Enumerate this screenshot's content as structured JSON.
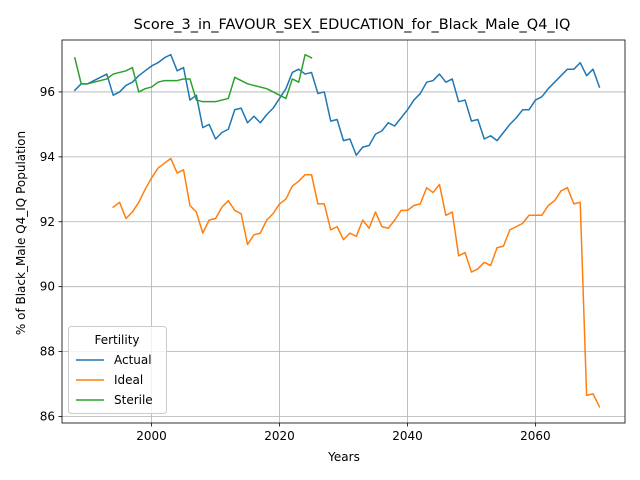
{
  "chart_data": {
    "type": "line",
    "title": "Score_3_in_FAVOUR_SEX_EDUCATION_for_Black_Male_Q4_IQ",
    "xlabel": "Years",
    "ylabel": "% of Black_Male Q4_IQ Population",
    "xlim": [
      1986,
      2074
    ],
    "ylim": [
      85.8,
      97.6
    ],
    "xticks": [
      2000,
      2020,
      2040,
      2060
    ],
    "yticks": [
      86,
      88,
      90,
      92,
      94,
      96
    ],
    "grid": true,
    "legend": {
      "title": "Fertility",
      "placement": "lower left"
    },
    "series": [
      {
        "name": "Actual",
        "color": "#1f77b4",
        "x": [
          1988,
          1989,
          1990,
          1991,
          1992,
          1993,
          1994,
          1995,
          1996,
          1997,
          1998,
          1999,
          2000,
          2001,
          2002,
          2003,
          2004,
          2005,
          2006,
          2007,
          2008,
          2009,
          2010,
          2011,
          2012,
          2013,
          2014,
          2015,
          2016,
          2017,
          2018,
          2019,
          2020,
          2021,
          2022,
          2023,
          2024,
          2025,
          2026,
          2027,
          2028,
          2029,
          2030,
          2031,
          2032,
          2033,
          2034,
          2035,
          2036,
          2037,
          2038,
          2039,
          2040,
          2041,
          2042,
          2043,
          2044,
          2045,
          2046,
          2047,
          2048,
          2049,
          2050,
          2051,
          2052,
          2053,
          2054,
          2055,
          2056,
          2057,
          2058,
          2059,
          2060,
          2061,
          2062,
          2063,
          2064,
          2065,
          2066,
          2067,
          2068,
          2069,
          2070
        ],
        "values": [
          96.05,
          96.25,
          96.25,
          96.35,
          96.45,
          96.55,
          95.9,
          96.0,
          96.2,
          96.3,
          96.5,
          96.65,
          96.8,
          96.9,
          97.05,
          97.15,
          96.65,
          96.75,
          95.75,
          95.9,
          94.9,
          95.0,
          94.55,
          94.75,
          94.85,
          95.45,
          95.5,
          95.05,
          95.25,
          95.05,
          95.3,
          95.5,
          95.8,
          96.1,
          96.6,
          96.7,
          96.55,
          96.6,
          95.95,
          96.0,
          95.1,
          95.15,
          94.5,
          94.55,
          94.05,
          94.3,
          94.35,
          94.7,
          94.8,
          95.05,
          94.95,
          95.2,
          95.45,
          95.75,
          95.95,
          96.3,
          96.35,
          96.55,
          96.3,
          96.4,
          95.7,
          95.75,
          95.1,
          95.15,
          94.55,
          94.65,
          94.5,
          94.75,
          95.0,
          95.2,
          95.45,
          95.45,
          95.75,
          95.85,
          96.1,
          96.3,
          96.5,
          96.7,
          96.7,
          96.9,
          96.5,
          96.7,
          96.15
        ]
      },
      {
        "name": "Ideal",
        "color": "#ff7f0e",
        "x": [
          1994,
          1995,
          1996,
          1997,
          1998,
          1999,
          2000,
          2001,
          2002,
          2003,
          2004,
          2005,
          2006,
          2007,
          2008,
          2009,
          2010,
          2011,
          2012,
          2013,
          2014,
          2015,
          2016,
          2017,
          2018,
          2019,
          2020,
          2021,
          2022,
          2023,
          2024,
          2025,
          2026,
          2027,
          2028,
          2029,
          2030,
          2031,
          2032,
          2033,
          2034,
          2035,
          2036,
          2037,
          2038,
          2039,
          2040,
          2041,
          2042,
          2043,
          2044,
          2045,
          2046,
          2047,
          2048,
          2049,
          2050,
          2051,
          2052,
          2053,
          2054,
          2055,
          2056,
          2057,
          2058,
          2059,
          2060,
          2061,
          2062,
          2063,
          2064,
          2065,
          2066,
          2067,
          2068,
          2069,
          2070
        ],
        "values": [
          92.45,
          92.6,
          92.1,
          92.3,
          92.6,
          93.0,
          93.35,
          93.65,
          93.8,
          93.95,
          93.5,
          93.6,
          92.5,
          92.3,
          91.65,
          92.05,
          92.1,
          92.45,
          92.65,
          92.35,
          92.25,
          91.3,
          91.6,
          91.65,
          92.05,
          92.25,
          92.55,
          92.7,
          93.1,
          93.25,
          93.45,
          93.45,
          92.55,
          92.55,
          91.75,
          91.85,
          91.45,
          91.65,
          91.55,
          92.05,
          91.8,
          92.3,
          91.85,
          91.8,
          92.05,
          92.35,
          92.35,
          92.5,
          92.55,
          93.05,
          92.9,
          93.15,
          92.2,
          92.3,
          90.95,
          91.05,
          90.45,
          90.55,
          90.75,
          90.65,
          91.2,
          91.25,
          91.75,
          91.85,
          91.95,
          92.2,
          92.2,
          92.2,
          92.5,
          92.65,
          92.95,
          93.05,
          92.55,
          92.6,
          86.65,
          86.7,
          86.3
        ]
      },
      {
        "name": "Sterile",
        "color": "#2ca02c",
        "x": [
          1988,
          1989,
          1990,
          1991,
          1992,
          1993,
          1994,
          1995,
          1996,
          1997,
          1998,
          1999,
          2000,
          2001,
          2002,
          2003,
          2004,
          2005,
          2006,
          2007,
          2008,
          2009,
          2010,
          2011,
          2012,
          2013,
          2014,
          2015,
          2016,
          2017,
          2018,
          2019,
          2020,
          2021,
          2022,
          2023,
          2024,
          2025
        ],
        "values": [
          97.05,
          96.25,
          96.25,
          96.3,
          96.35,
          96.4,
          96.55,
          96.6,
          96.65,
          96.75,
          96.0,
          96.1,
          96.15,
          96.3,
          96.35,
          96.35,
          96.35,
          96.4,
          96.4,
          95.75,
          95.7,
          95.7,
          95.7,
          95.75,
          95.8,
          96.45,
          96.35,
          96.25,
          96.2,
          96.15,
          96.1,
          96.0,
          95.9,
          95.8,
          96.4,
          96.3,
          97.15,
          97.05
        ]
      }
    ]
  }
}
